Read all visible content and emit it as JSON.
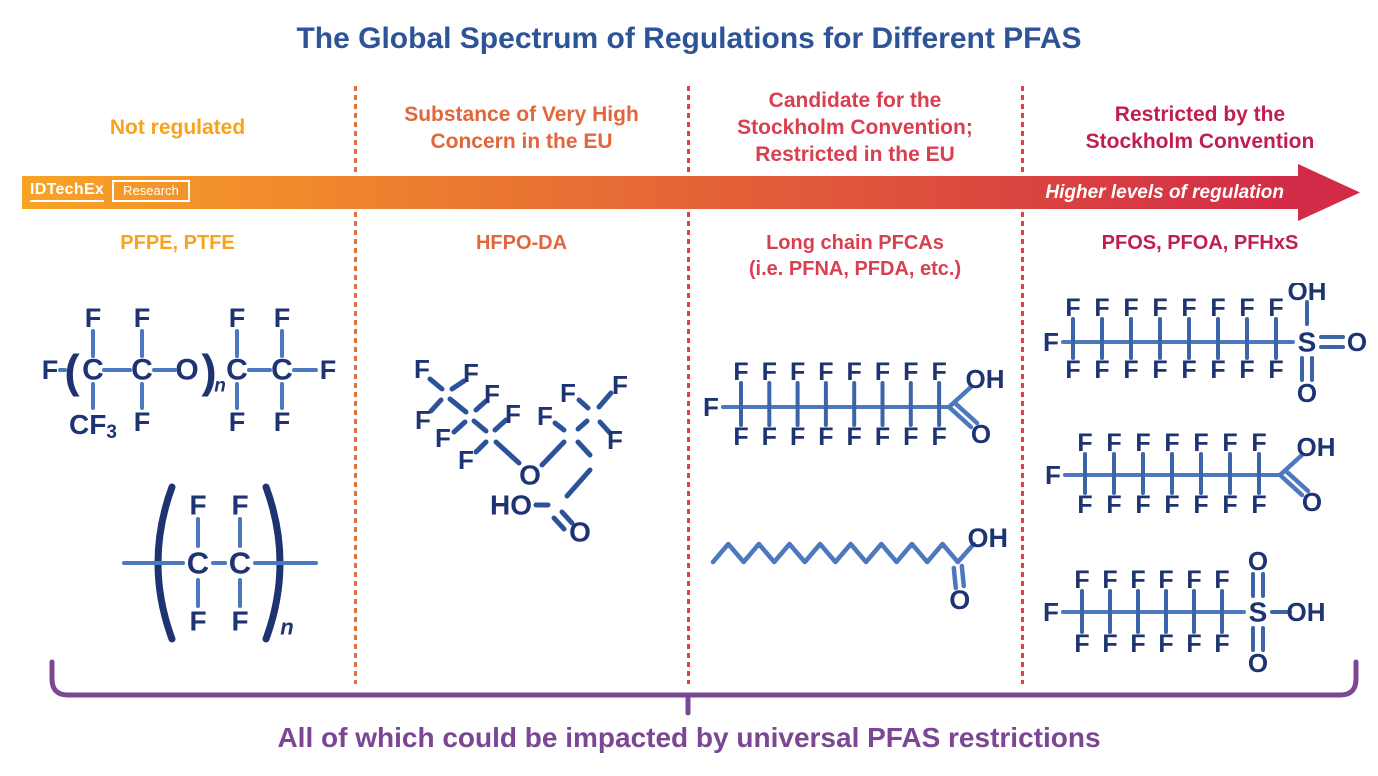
{
  "title": "The Global Spectrum of Regulations for Different PFAS",
  "brand": {
    "name": "IDTechEx",
    "suffix": "Research"
  },
  "arrow_label": "Higher levels of regulation",
  "footer": "All of which could be impacted by universal PFAS restrictions",
  "colors": {
    "title": "#2E5498",
    "arrow_start": "#F8A325",
    "arrow_end": "#D22B47",
    "purple": "#7B4693",
    "atom": "#1E3472",
    "bond_light": "#4C78BF",
    "bond_mid": "#3C64A8",
    "bond_skeletal": "#2C529C",
    "separator_colors": [
      "#E0703F",
      "#E3404B",
      "#E3404B"
    ]
  },
  "columns": [
    {
      "header_lines": [
        "Not regulated"
      ],
      "compound_lines": [
        "PFPE, PTFE"
      ],
      "color": "#F9A21B"
    },
    {
      "header_lines": [
        "Substance of Very High",
        "Concern in the EU"
      ],
      "compound_lines": [
        "HFPO-DA"
      ],
      "color": "#E2663B"
    },
    {
      "header_lines": [
        "Candidate for the",
        "Stockholm Convention;",
        "Restricted in the EU"
      ],
      "compound_lines": [
        "Long chain PFCAs",
        "(i.e. PFNA, PFDA, etc.)"
      ],
      "color": "#D9404F"
    },
    {
      "header_lines": [
        "Restricted by the",
        "Stockholm Convention"
      ],
      "compound_lines": [
        "PFOS, PFOA, PFHxS"
      ],
      "color": "#C01F4E"
    }
  ],
  "atom_labels": {
    "F": "F",
    "C": "C",
    "O": "O",
    "S": "S",
    "OH": "OH",
    "HO": "HO",
    "CF3_main": "CF",
    "CF3_sub": "3",
    "repeat": "n",
    "open": "(",
    "close": ")"
  },
  "structures": {
    "pfpe": {
      "type": "pfpe"
    },
    "ptfe": {
      "type": "ptfe"
    },
    "hfpo_da": {
      "type": "hfpo"
    },
    "long_chain_pfca": {
      "type": "ladder",
      "f_pairs": 8,
      "end_group": "COOH"
    },
    "hydrocarbon_acid": {
      "type": "zigzag",
      "segments": 16,
      "end_group": "COOH"
    },
    "pfos": {
      "type": "ladder",
      "f_pairs": 8,
      "end_group": "SO2OH_top"
    },
    "pfoa": {
      "type": "ladder",
      "f_pairs": 7,
      "end_group": "COOH"
    },
    "pfhxs": {
      "type": "ladder",
      "f_pairs": 6,
      "end_group": "SO2OH_right"
    }
  }
}
